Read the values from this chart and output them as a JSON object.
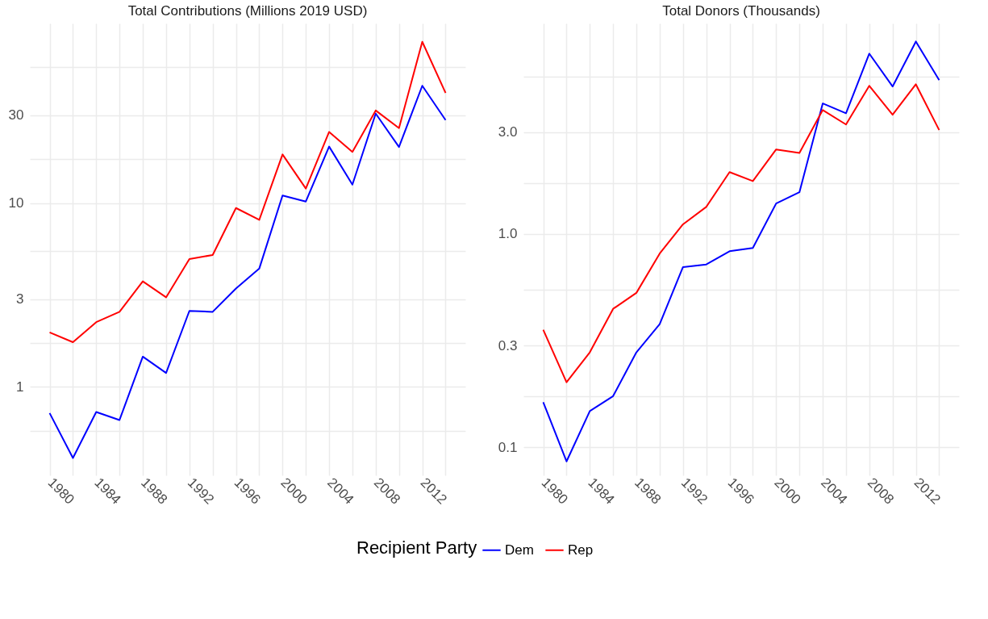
{
  "chart_data": [
    {
      "type": "line",
      "title": "Total Contributions (Millions 2019 USD)",
      "x": [
        1980,
        1982,
        1984,
        1986,
        1988,
        1990,
        1992,
        1994,
        1996,
        1998,
        2000,
        2002,
        2004,
        2006,
        2008,
        2010,
        2012,
        2014
      ],
      "series": [
        {
          "name": "Dem",
          "color": "#0000ff",
          "values": [
            0.72,
            0.41,
            0.73,
            0.66,
            1.46,
            1.19,
            2.59,
            2.56,
            3.43,
            4.4,
            11.0,
            10.2,
            20.3,
            12.6,
            30.7,
            20.2,
            43.5,
            28.3
          ]
        },
        {
          "name": "Rep",
          "color": "#ff0000",
          "values": [
            1.98,
            1.75,
            2.25,
            2.56,
            3.75,
            3.07,
            4.96,
            5.22,
            9.4,
            8.1,
            18.4,
            12.0,
            24.4,
            19.0,
            31.9,
            25.6,
            75.5,
            39.8
          ]
        }
      ],
      "log": true,
      "ylim": [
        0.33,
        95
      ],
      "yticks": [
        {
          "value": 0.577,
          "label": null
        },
        1,
        {
          "value": 1.73,
          "label": null
        },
        3,
        {
          "value": 5.48,
          "label": null
        },
        10,
        {
          "value": 17.3,
          "label": null
        },
        30,
        {
          "value": 54.8,
          "label": null
        }
      ],
      "xlim": [
        1978.3,
        2015.7
      ],
      "xticks": [
        1980,
        {
          "value": 1982,
          "label": null
        },
        1984,
        {
          "value": 1986,
          "label": null
        },
        1988,
        {
          "value": 1990,
          "label": null
        },
        1992,
        {
          "value": 1994,
          "label": null
        },
        1996,
        {
          "value": 1998,
          "label": null
        },
        2000,
        {
          "value": 2002,
          "label": null
        },
        2004,
        {
          "value": 2006,
          "label": null
        },
        2008,
        {
          "value": 2010,
          "label": null
        },
        2012,
        {
          "value": 2014,
          "label": null
        }
      ],
      "grid": true,
      "legend": "bottom",
      "legend_title": "Recipient Party"
    },
    {
      "type": "line",
      "title": "Total Donors (Thousands)",
      "x": [
        1980,
        1982,
        1984,
        1986,
        1988,
        1990,
        1992,
        1994,
        1996,
        1998,
        2000,
        2002,
        2004,
        2006,
        2008,
        2010,
        2012,
        2014
      ],
      "series": [
        {
          "name": "Dem",
          "color": "#0000ff",
          "values": [
            0.163,
            0.086,
            0.148,
            0.174,
            0.279,
            0.378,
            0.7,
            0.72,
            0.83,
            0.86,
            1.39,
            1.57,
            4.09,
            3.68,
            7.0,
            4.91,
            7.98,
            5.26
          ]
        },
        {
          "name": "Rep",
          "color": "#ff0000",
          "values": [
            0.356,
            0.202,
            0.279,
            0.446,
            0.53,
            0.81,
            1.11,
            1.34,
            1.95,
            1.77,
            2.49,
            2.4,
            3.81,
            3.26,
            4.95,
            3.62,
            5.03,
            3.07
          ]
        }
      ],
      "log": true,
      "ylim": [
        0.074,
        9.7
      ],
      "yticks": [
        {
          "value": 0.1,
          "label": "0.1"
        },
        {
          "value": 0.173,
          "label": null
        },
        {
          "value": 0.3,
          "label": "0.3"
        },
        {
          "value": 0.548,
          "label": null
        },
        {
          "value": 1,
          "label": "1.0"
        },
        {
          "value": 1.73,
          "label": null
        },
        {
          "value": 3,
          "label": "3.0"
        },
        {
          "value": 5.48,
          "label": null
        }
      ],
      "xlim": [
        1978.3,
        2015.7
      ],
      "xticks": [
        1980,
        {
          "value": 1982,
          "label": null
        },
        1984,
        {
          "value": 1986,
          "label": null
        },
        1988,
        {
          "value": 1990,
          "label": null
        },
        1992,
        {
          "value": 1994,
          "label": null
        },
        1996,
        {
          "value": 1998,
          "label": null
        },
        2000,
        {
          "value": 2002,
          "label": null
        },
        2004,
        {
          "value": 2006,
          "label": null
        },
        2008,
        {
          "value": 2010,
          "label": null
        },
        2012,
        {
          "value": 2014,
          "label": null
        }
      ],
      "grid": true
    }
  ]
}
